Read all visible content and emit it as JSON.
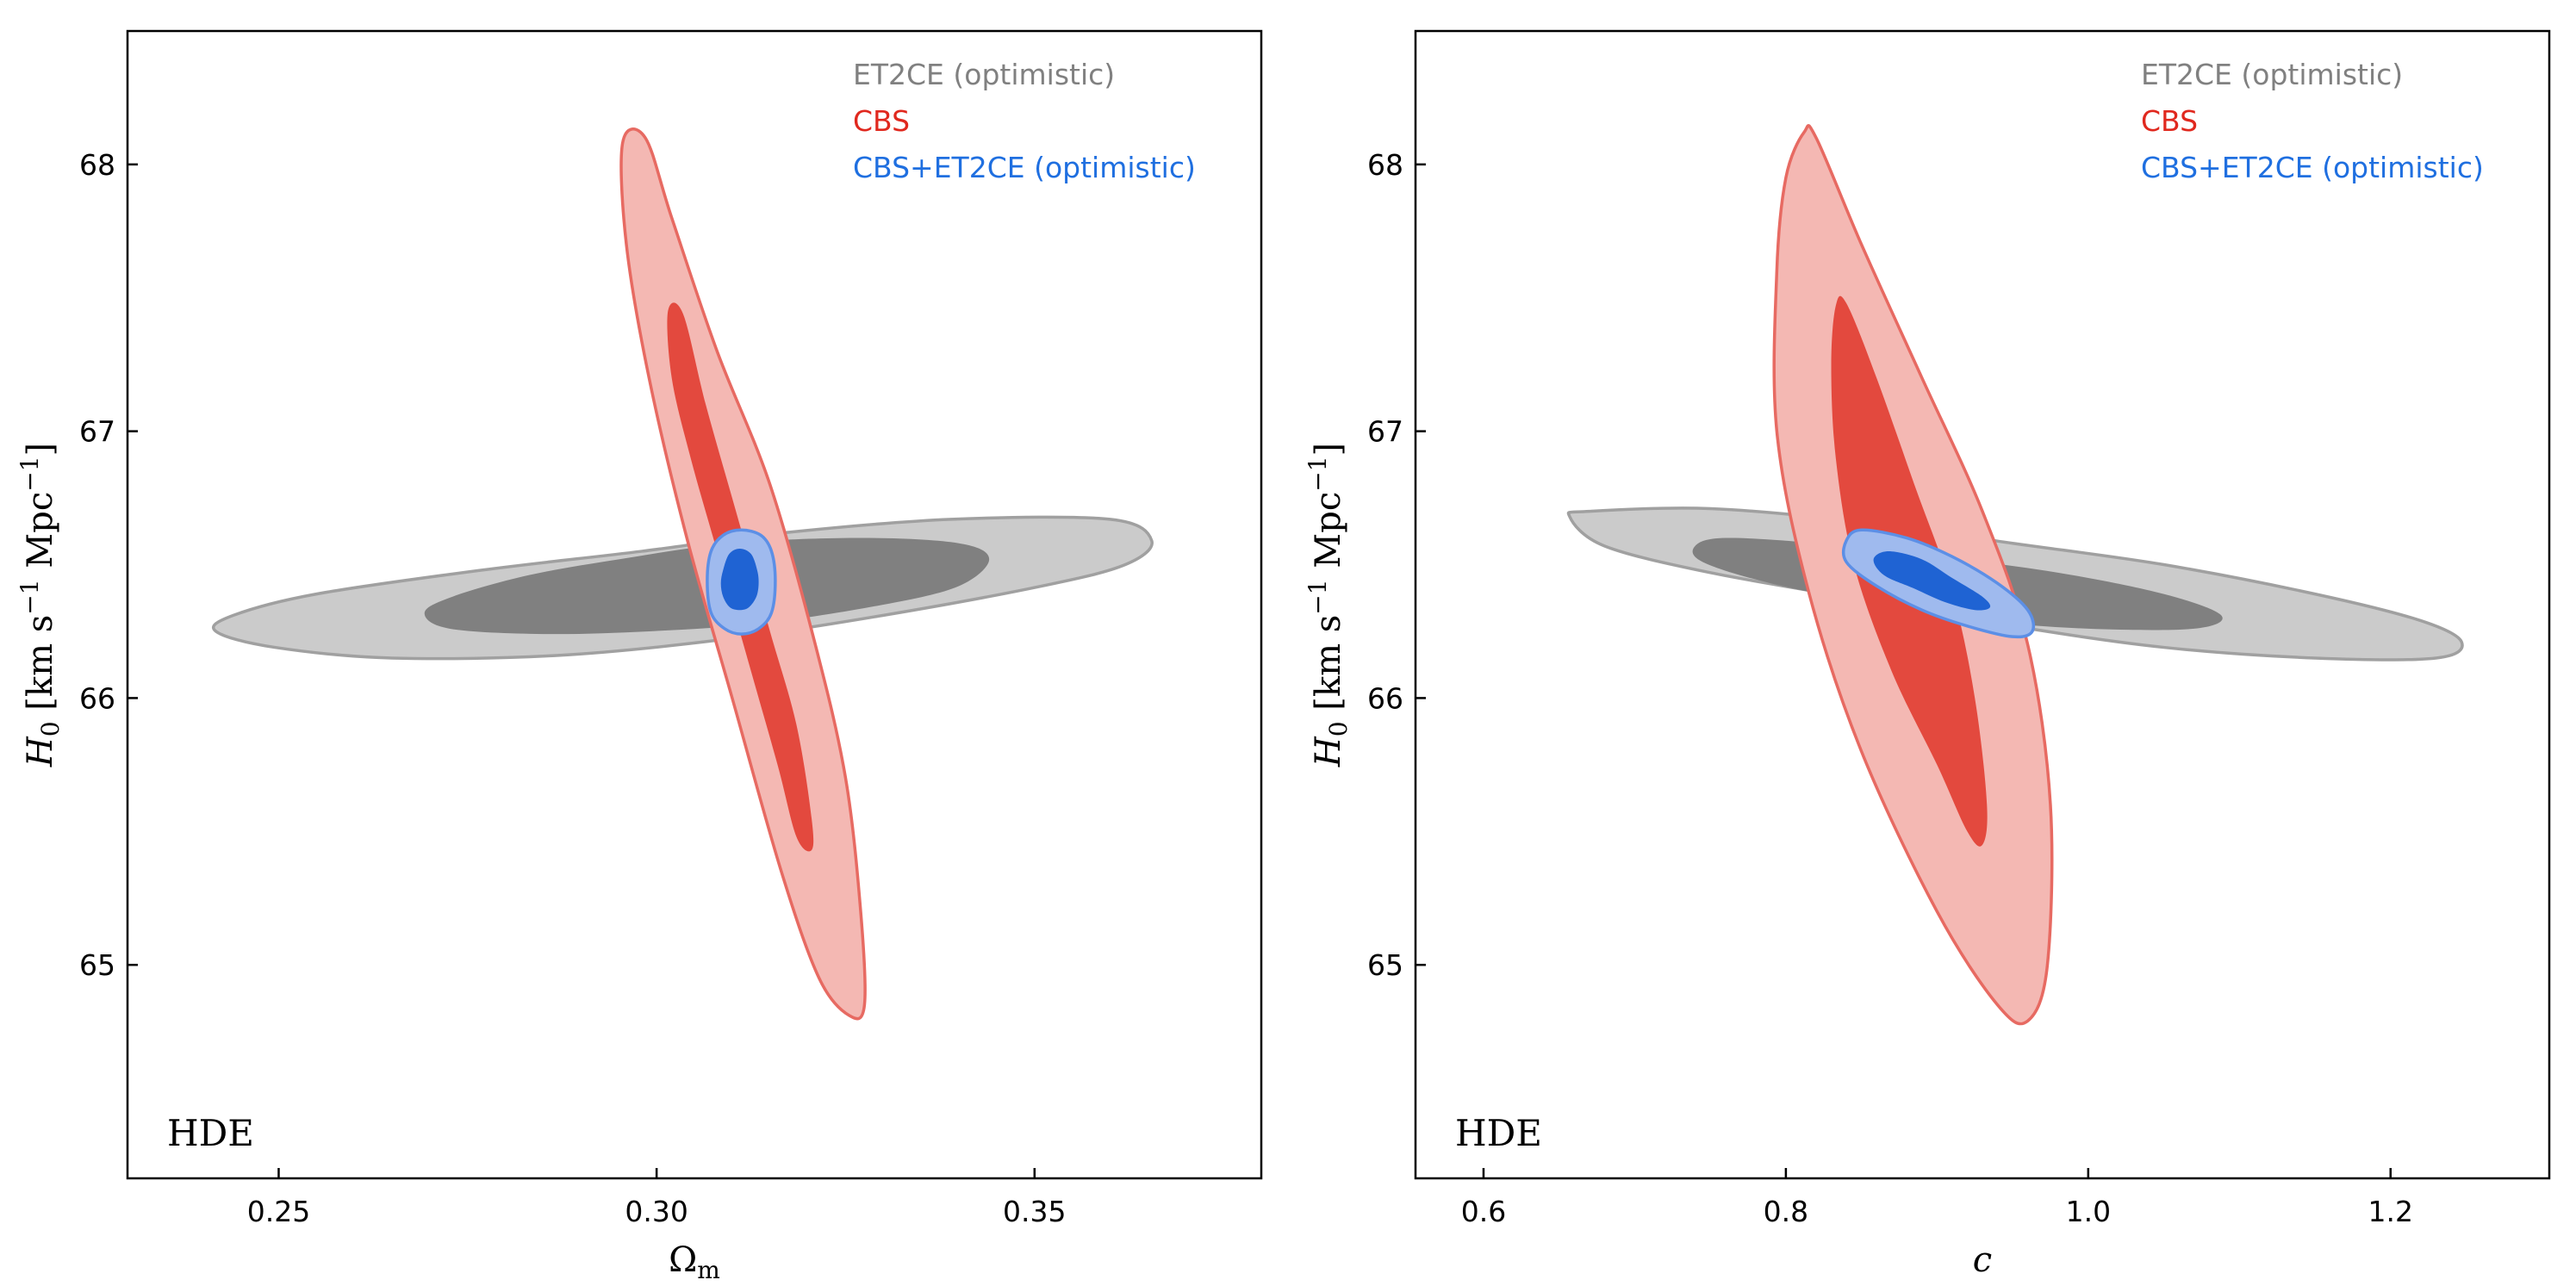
{
  "chart_data": [
    {
      "type": "contour",
      "annotation": "HDE",
      "xlabel_var": "Ω",
      "xlabel_sub": "m",
      "xlabel_italic": false,
      "ylabel_var": "H",
      "ylabel_sub": "0",
      "ylabel_units": "[km s",
      "ylabel_units_sup": "−1",
      "ylabel_units_mid": " Mpc",
      "ylabel_units_sup2": "−1",
      "ylabel_units_end": "]",
      "xlim": [
        0.23,
        0.38
      ],
      "ylim": [
        64.2,
        68.5
      ],
      "xticks": [
        0.25,
        0.3,
        0.35
      ],
      "xtick_labels": [
        "0.25",
        "0.30",
        "0.35"
      ],
      "yticks": [
        65,
        66,
        67,
        68
      ],
      "ytick_labels": [
        "65",
        "66",
        "67",
        "68"
      ],
      "legend": [
        {
          "label": "ET2CE (optimistic)",
          "color": "#808080"
        },
        {
          "label": "CBS",
          "color": "#e0281e"
        },
        {
          "label": "CBS+ET2CE (optimistic)",
          "color": "#1f6fe0"
        }
      ],
      "legend_position": "top-right",
      "series": [
        {
          "name": "ET2CE (optimistic)",
          "center": [
            0.3035,
            66.42
          ],
          "contours": [
            [
              [
                0.2417,
                66.25
              ],
              [
                0.2495,
                66.19
              ],
              [
                0.265,
                66.15
              ],
              [
                0.287,
                66.16
              ],
              [
                0.309,
                66.22
              ],
              [
                0.33,
                66.31
              ],
              [
                0.351,
                66.42
              ],
              [
                0.362,
                66.5
              ],
              [
                0.3655,
                66.59
              ],
              [
                0.36,
                66.67
              ],
              [
                0.339,
                66.67
              ],
              [
                0.317,
                66.62
              ],
              [
                0.298,
                66.55
              ],
              [
                0.277,
                66.48
              ],
              [
                0.255,
                66.39
              ],
              [
                0.244,
                66.31
              ]
            ],
            [
              [
                0.2693,
                66.32
              ],
              [
                0.2726,
                66.26
              ],
              [
                0.285,
                66.24
              ],
              [
                0.299,
                66.25
              ],
              [
                0.314,
                66.28
              ],
              [
                0.33,
                66.35
              ],
              [
                0.34,
                66.42
              ],
              [
                0.344,
                66.52
              ],
              [
                0.34,
                66.58
              ],
              [
                0.327,
                66.6
              ],
              [
                0.31,
                66.58
              ],
              [
                0.295,
                66.52
              ],
              [
                0.283,
                66.46
              ],
              [
                0.273,
                66.38
              ]
            ]
          ]
        },
        {
          "name": "CBS",
          "center": [
            0.311,
            66.44
          ],
          "contours": [
            [
              [
                0.2955,
                68.08
              ],
              [
                0.2985,
                68.1
              ],
              [
                0.302,
                67.8
              ],
              [
                0.308,
                67.3
              ],
              [
                0.315,
                66.8
              ],
              [
                0.321,
                66.2
              ],
              [
                0.325,
                65.7
              ],
              [
                0.327,
                65.2
              ],
              [
                0.3275,
                64.85
              ],
              [
                0.3255,
                64.81
              ],
              [
                0.3215,
                64.95
              ],
              [
                0.3165,
                65.35
              ],
              [
                0.31,
                66.0
              ],
              [
                0.304,
                66.6
              ],
              [
                0.299,
                67.2
              ],
              [
                0.296,
                67.7
              ]
            ],
            [
              [
                0.3015,
                67.45
              ],
              [
                0.3035,
                67.44
              ],
              [
                0.3065,
                67.1
              ],
              [
                0.3105,
                66.7
              ],
              [
                0.315,
                66.25
              ],
              [
                0.3185,
                65.9
              ],
              [
                0.3205,
                65.55
              ],
              [
                0.3205,
                65.43
              ],
              [
                0.3185,
                65.48
              ],
              [
                0.316,
                65.75
              ],
              [
                0.312,
                66.15
              ],
              [
                0.308,
                66.55
              ],
              [
                0.3045,
                66.9
              ],
              [
                0.302,
                67.2
              ]
            ]
          ]
        },
        {
          "name": "CBS+ET2CE (optimistic)",
          "center": [
            0.3112,
            66.44
          ],
          "contours": [
            [
              [
                0.3112,
                66.63
              ],
              [
                0.3138,
                66.61
              ],
              [
                0.3152,
                66.55
              ],
              [
                0.3157,
                66.44
              ],
              [
                0.3152,
                66.32
              ],
              [
                0.3135,
                66.26
              ],
              [
                0.3112,
                66.24
              ],
              [
                0.309,
                66.26
              ],
              [
                0.3072,
                66.32
              ],
              [
                0.3067,
                66.44
              ],
              [
                0.3072,
                66.55
              ],
              [
                0.3088,
                66.61
              ]
            ],
            [
              [
                0.311,
                66.56
              ],
              [
                0.3125,
                66.54
              ],
              [
                0.3133,
                66.48
              ],
              [
                0.3135,
                66.43
              ],
              [
                0.3132,
                66.38
              ],
              [
                0.3122,
                66.34
              ],
              [
                0.311,
                66.33
              ],
              [
                0.3097,
                66.34
              ],
              [
                0.3088,
                66.38
              ],
              [
                0.3085,
                66.43
              ],
              [
                0.3088,
                66.48
              ],
              [
                0.3096,
                66.54
              ]
            ]
          ]
        }
      ]
    },
    {
      "type": "contour",
      "annotation": "HDE",
      "xlabel_var": "c",
      "xlabel_sub": "",
      "xlabel_italic": true,
      "ylabel_var": "H",
      "ylabel_sub": "0",
      "ylabel_units": "[km s",
      "ylabel_units_sup": "−1",
      "ylabel_units_mid": " Mpc",
      "ylabel_units_sup2": "−1",
      "ylabel_units_end": "]",
      "xlim": [
        0.555,
        1.305
      ],
      "ylim": [
        64.2,
        68.5
      ],
      "xticks": [
        0.6,
        0.8,
        1.0,
        1.2
      ],
      "xtick_labels": [
        "0.6",
        "0.8",
        "1.0",
        "1.2"
      ],
      "yticks": [
        65,
        66,
        67,
        68
      ],
      "ytick_labels": [
        "65",
        "66",
        "67",
        "68"
      ],
      "legend": [
        {
          "label": "ET2CE (optimistic)",
          "color": "#808080"
        },
        {
          "label": "CBS",
          "color": "#e0281e"
        },
        {
          "label": "CBS+ET2CE (optimistic)",
          "color": "#1f6fe0"
        }
      ],
      "legend_position": "top-right",
      "series": [
        {
          "name": "ET2CE (optimistic)",
          "center": [
            0.95,
            66.45
          ],
          "contours": [
            [
              [
                0.657,
                66.68
              ],
              [
                0.67,
                66.7
              ],
              [
                0.75,
                66.71
              ],
              [
                0.85,
                66.66
              ],
              [
                0.95,
                66.58
              ],
              [
                1.05,
                66.5
              ],
              [
                1.15,
                66.39
              ],
              [
                1.22,
                66.29
              ],
              [
                1.247,
                66.21
              ],
              [
                1.23,
                66.15
              ],
              [
                1.15,
                66.15
              ],
              [
                1.05,
                66.19
              ],
              [
                0.95,
                66.27
              ],
              [
                0.85,
                66.37
              ],
              [
                0.75,
                66.47
              ],
              [
                0.68,
                66.57
              ]
            ],
            [
              [
                0.74,
                66.57
              ],
              [
                0.76,
                66.6
              ],
              [
                0.82,
                66.58
              ],
              [
                0.9,
                66.53
              ],
              [
                0.98,
                66.47
              ],
              [
                1.05,
                66.39
              ],
              [
                1.088,
                66.31
              ],
              [
                1.07,
                66.26
              ],
              [
                1.0,
                66.26
              ],
              [
                0.93,
                66.29
              ],
              [
                0.86,
                66.35
              ],
              [
                0.79,
                66.43
              ],
              [
                0.745,
                66.51
              ]
            ]
          ]
        },
        {
          "name": "CBS",
          "center": [
            0.89,
            66.45
          ],
          "contours": [
            [
              [
                0.812,
                68.12
              ],
              [
                0.82,
                68.1
              ],
              [
                0.85,
                67.7
              ],
              [
                0.89,
                67.2
              ],
              [
                0.93,
                66.7
              ],
              [
                0.96,
                66.2
              ],
              [
                0.975,
                65.6
              ],
              [
                0.973,
                65.0
              ],
              [
                0.96,
                64.79
              ],
              [
                0.94,
                64.85
              ],
              [
                0.9,
                65.2
              ],
              [
                0.85,
                65.8
              ],
              [
                0.815,
                66.4
              ],
              [
                0.794,
                67.0
              ],
              [
                0.794,
                67.6
              ],
              [
                0.8,
                67.95
              ]
            ],
            [
              [
                0.833,
                67.47
              ],
              [
                0.84,
                67.48
              ],
              [
                0.86,
                67.2
              ],
              [
                0.885,
                66.8
              ],
              [
                0.91,
                66.4
              ],
              [
                0.925,
                66.0
              ],
              [
                0.933,
                65.6
              ],
              [
                0.93,
                65.45
              ],
              [
                0.92,
                65.5
              ],
              [
                0.9,
                65.75
              ],
              [
                0.87,
                66.1
              ],
              [
                0.845,
                66.5
              ],
              [
                0.833,
                66.9
              ],
              [
                0.83,
                67.25
              ]
            ]
          ]
        },
        {
          "name": "CBS+ET2CE (optimistic)",
          "center": [
            0.89,
            66.44
          ],
          "contours": [
            [
              [
                0.84,
                66.59
              ],
              [
                0.85,
                66.63
              ],
              [
                0.88,
                66.6
              ],
              [
                0.91,
                66.53
              ],
              [
                0.94,
                66.43
              ],
              [
                0.96,
                66.33
              ],
              [
                0.963,
                66.25
              ],
              [
                0.95,
                66.23
              ],
              [
                0.92,
                66.27
              ],
              [
                0.89,
                66.33
              ],
              [
                0.86,
                66.42
              ],
              [
                0.84,
                66.51
              ]
            ],
            [
              [
                0.858,
                66.52
              ],
              [
                0.868,
                66.55
              ],
              [
                0.89,
                66.52
              ],
              [
                0.91,
                66.45
              ],
              [
                0.93,
                66.38
              ],
              [
                0.935,
                66.34
              ],
              [
                0.925,
                66.33
              ],
              [
                0.905,
                66.36
              ],
              [
                0.885,
                66.41
              ],
              [
                0.865,
                66.46
              ]
            ]
          ]
        }
      ]
    }
  ],
  "colors": {
    "et2ce_outer_fill": "#cbcbcb",
    "et2ce_inner_fill": "#808080",
    "et2ce_edge": "#a0a0a0",
    "cbs_outer_fill": "#f4b8b3",
    "cbs_inner_fill": "#e3493e",
    "cbs_edge": "#e76a62",
    "comb_outer_fill": "#9fbaee",
    "comb_inner_fill": "#1f63d3",
    "comb_edge": "#5c8fe6"
  }
}
